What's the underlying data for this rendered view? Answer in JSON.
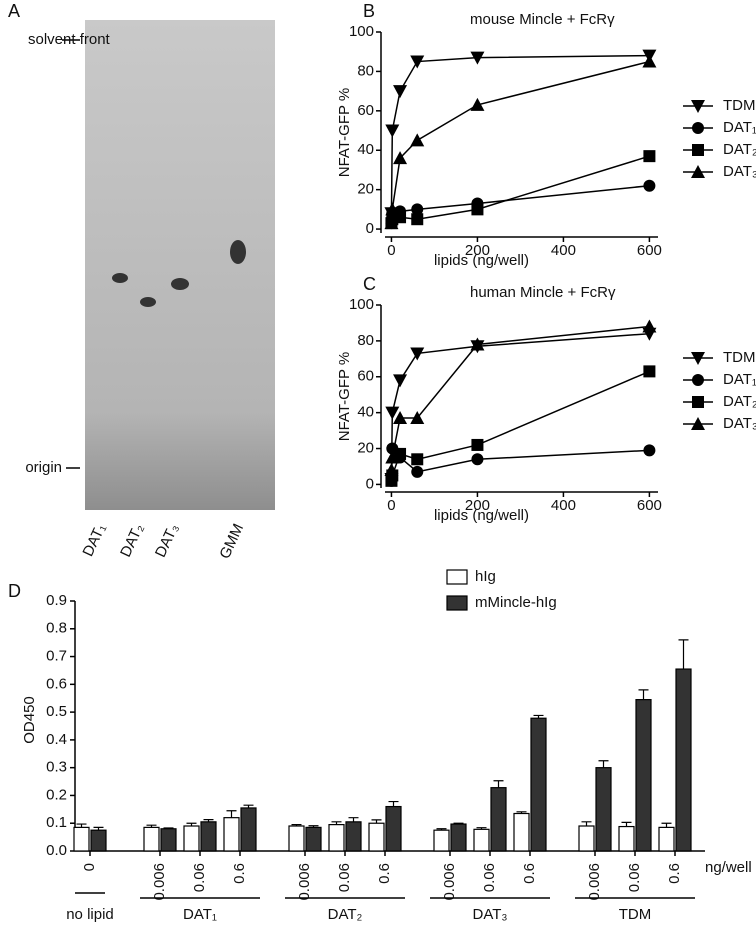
{
  "tlc_plate": {
    "panel": "A",
    "solvent_front": "solvent front",
    "origin": "origin",
    "lanes": [
      "DAT₁",
      "DAT₂",
      "DAT₃",
      "GMM"
    ]
  },
  "chart_data": [
    {
      "type": "line",
      "panel": "B",
      "title": "mouse Mincle + FcRγ",
      "x_label": "lipids (ng/well)",
      "y_label": "NFAT-GFP %",
      "x": [
        0,
        2,
        20,
        60,
        200,
        600
      ],
      "xlim": [
        -15,
        620
      ],
      "xticks": [
        0,
        200,
        400,
        600
      ],
      "ylim": [
        -2,
        100
      ],
      "yticks": [
        0,
        20,
        40,
        60,
        80,
        100
      ],
      "series": [
        {
          "name": "TDM",
          "color": "#000000",
          "marker": "triangle-down",
          "values": [
            8,
            50,
            70,
            85,
            87,
            88
          ]
        },
        {
          "name": "DAT₁",
          "color": "#000000",
          "marker": "circle",
          "values": [
            3,
            8,
            9,
            10,
            13,
            22
          ]
        },
        {
          "name": "DAT₂",
          "color": "#000000",
          "marker": "square",
          "values": [
            3,
            5,
            6,
            5,
            10,
            37
          ]
        },
        {
          "name": "DAT₃",
          "color": "#000000",
          "marker": "triangle-up",
          "values": [
            3,
            10,
            36,
            45,
            63,
            85
          ]
        }
      ]
    },
    {
      "type": "line",
      "panel": "C",
      "title": "human Mincle + FcRγ",
      "x_label": "lipids (ng/well)",
      "y_label": "NFAT-GFP %",
      "x": [
        0,
        2,
        20,
        60,
        200,
        600
      ],
      "xlim": [
        -15,
        620
      ],
      "xticks": [
        0,
        200,
        400,
        600
      ],
      "ylim": [
        -2,
        100
      ],
      "yticks": [
        0,
        20,
        40,
        60,
        80,
        100
      ],
      "series": [
        {
          "name": "TDM",
          "color": "#000000",
          "marker": "triangle-down",
          "values": [
            3,
            40,
            58,
            73,
            77,
            84
          ]
        },
        {
          "name": "DAT₁",
          "color": "#000000",
          "marker": "circle",
          "values": [
            2,
            20,
            15,
            7,
            14,
            19
          ]
        },
        {
          "name": "DAT₂",
          "color": "#000000",
          "marker": "square",
          "values": [
            2,
            5,
            17,
            14,
            22,
            63
          ]
        },
        {
          "name": "DAT₃",
          "color": "#000000",
          "marker": "triangle-up",
          "values": [
            8,
            15,
            37,
            37,
            78,
            88
          ]
        }
      ]
    },
    {
      "type": "bar",
      "panel": "D",
      "y_label": "OD450",
      "x_unit": "ng/well",
      "categories": [
        "0",
        "0.006",
        "0.06",
        "0.6",
        "0.006",
        "0.06",
        "0.6",
        "0.006",
        "0.06",
        "0.6",
        "0.006",
        "0.06",
        "0.6"
      ],
      "groups": [
        "no lipid",
        "DAT₁",
        "DAT₂",
        "DAT₃",
        "TDM"
      ],
      "ylim": [
        0,
        0.9
      ],
      "yticks": [
        {
          "value": 0,
          "label": "0.0"
        },
        0.1,
        0.2,
        0.3,
        0.4,
        0.5,
        0.6,
        0.7,
        0.8,
        0.9
      ],
      "series": [
        {
          "name": "hIg",
          "color": "#ffffff",
          "values": [
            0.085,
            0.085,
            0.09,
            0.12,
            0.09,
            0.095,
            0.1,
            0.075,
            0.078,
            0.135,
            0.09,
            0.088,
            0.085
          ],
          "errors": [
            0.012,
            0.008,
            0.01,
            0.025,
            0.005,
            0.01,
            0.012,
            0.005,
            0.006,
            0.006,
            0.015,
            0.015,
            0.015
          ]
        },
        {
          "name": "mMincle-hIg",
          "color": "#333333",
          "values": [
            0.075,
            0.08,
            0.105,
            0.155,
            0.085,
            0.105,
            0.16,
            0.097,
            0.228,
            0.478,
            0.3,
            0.545,
            0.655
          ],
          "errors": [
            0.01,
            0.003,
            0.008,
            0.01,
            0.006,
            0.015,
            0.018,
            0.003,
            0.025,
            0.01,
            0.025,
            0.035,
            0.105
          ]
        }
      ]
    }
  ]
}
